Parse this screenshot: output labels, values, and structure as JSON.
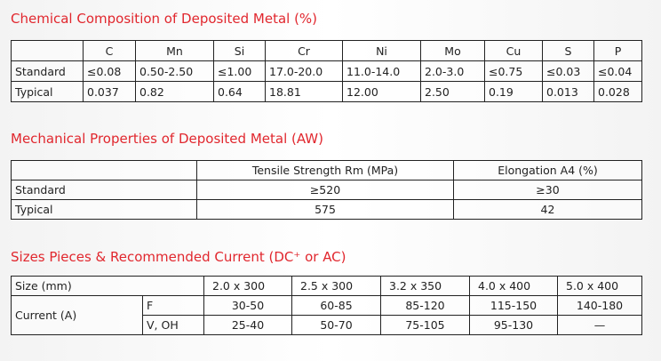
{
  "chemical": {
    "title": "Chemical Composition of Deposited Metal (%)",
    "columns": [
      "C",
      "Mn",
      "Si",
      "Cr",
      "Ni",
      "Mo",
      "Cu",
      "S",
      "P"
    ],
    "rows": [
      {
        "label": "Standard",
        "values": [
          "≤0.08",
          "0.50-2.50",
          "≤1.00",
          "17.0-20.0",
          "11.0-14.0",
          "2.0-3.0",
          "≤0.75",
          "≤0.03",
          "≤0.04"
        ]
      },
      {
        "label": "Typical",
        "values": [
          "0.037",
          "0.82",
          "0.64",
          "18.81",
          "12.00",
          "2.50",
          "0.19",
          "0.013",
          "0.028"
        ]
      }
    ]
  },
  "mechanical": {
    "title": "Mechanical Properties of Deposited Metal (AW)",
    "columns": [
      "Tensile Strength  Rm (MPa)",
      "Elongation  A4 (%)"
    ],
    "rows": [
      {
        "label": "Standard",
        "values": [
          "≥520",
          "≥30"
        ]
      },
      {
        "label": "Typical",
        "values": [
          "575",
          "42"
        ]
      }
    ]
  },
  "sizes": {
    "title": "Sizes Pieces & Recommended Current (DC⁺ or AC)",
    "size_label": "Size (mm)",
    "sizes": [
      "2.0 x 300",
      "2.5 x 300",
      "3.2 x 350",
      "4.0 x 400",
      "5.0 x 400"
    ],
    "current_label": "Current (A)",
    "rows": [
      {
        "position": "F",
        "values": [
          "30-50",
          "60-85",
          "85-120",
          "115-150",
          "140-180"
        ]
      },
      {
        "position": "V, OH",
        "values": [
          "25-40",
          "50-70",
          "75-105",
          "95-130",
          "—"
        ]
      }
    ]
  }
}
